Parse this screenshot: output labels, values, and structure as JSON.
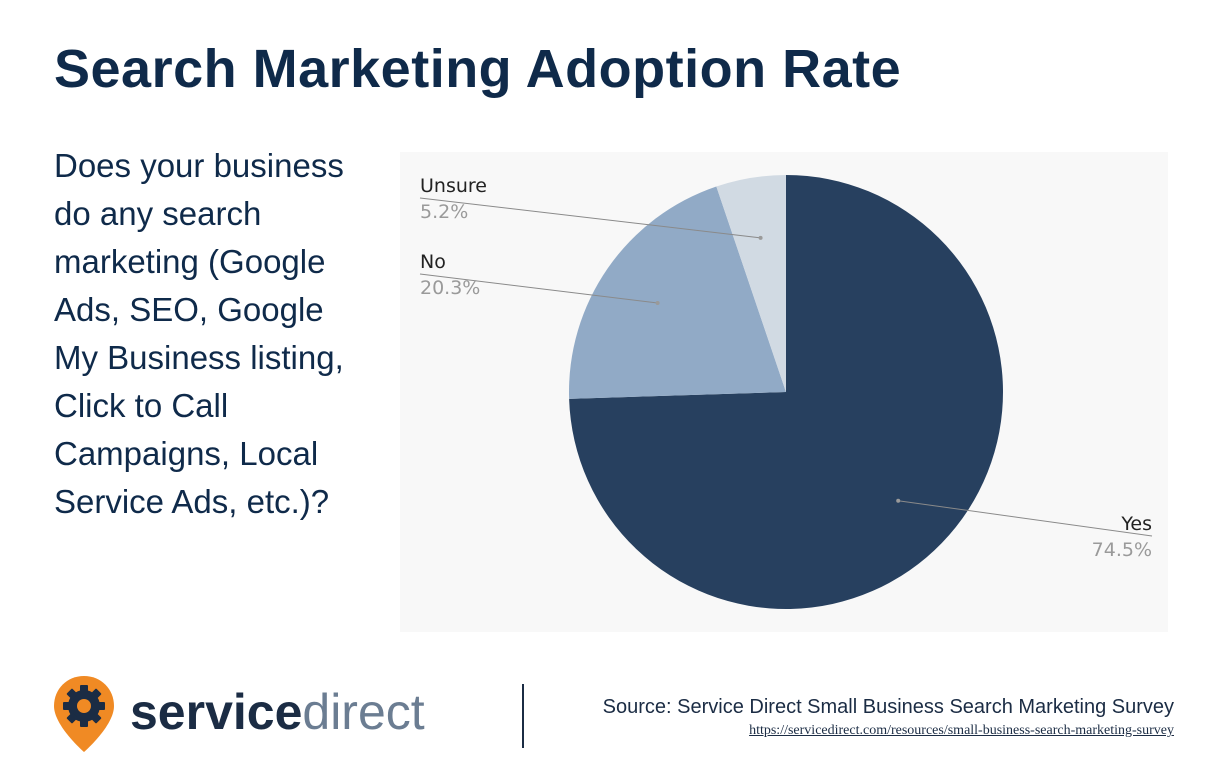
{
  "page": {
    "title": "Search Marketing Adoption Rate",
    "question": "Does your business do any search marketing (Google Ads, SEO, Google My Business listing, Click to Call Campaigns, Local Service Ads, etc.)?"
  },
  "chart_data": {
    "type": "pie",
    "start_angle_deg": 0,
    "direction": "clockwise",
    "slices": [
      {
        "label": "Yes",
        "value": 74.5,
        "percent_label": "74.5%",
        "color": "#27405f"
      },
      {
        "label": "No",
        "value": 20.3,
        "percent_label": "20.3%",
        "color": "#91aac6"
      },
      {
        "label": "Unsure",
        "value": 5.2,
        "percent_label": "5.2%",
        "color": "#d1dae3"
      }
    ],
    "label_placement": "outside with leader lines"
  },
  "footer": {
    "logo_service": "service",
    "logo_direct": "direct",
    "source": "Source: Service Direct Small Business Search Marketing Survey",
    "url": "https://servicedirect.com/resources/small-business-search-marketing-survey"
  },
  "colors": {
    "title": "#0f2a4a",
    "brand_orange": "#f08a24",
    "brand_navy": "#1b2c44"
  }
}
